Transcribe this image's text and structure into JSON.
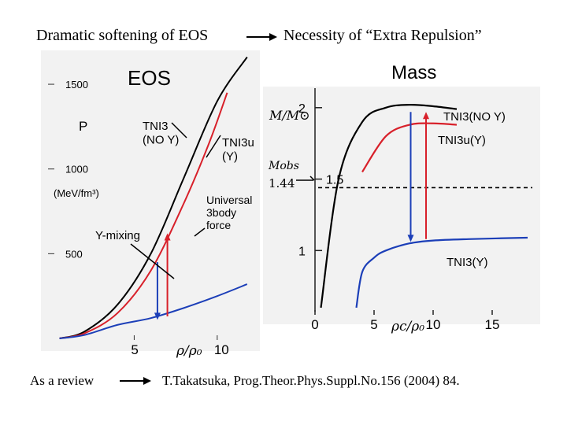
{
  "header": {
    "left": "Dramatic softening of EOS",
    "right": "Necessity of “Extra Repulsion”"
  },
  "footer": {
    "left": "As a review",
    "right": "T.Takatsuka, Prog.Theor.Phys.Suppl.No.156 (2004) 84."
  },
  "colors": {
    "black": "#000000",
    "red": "#d8202a",
    "blue": "#1c3fb8"
  },
  "chart_data": [
    {
      "type": "line",
      "title": "EOS",
      "ylabel": "P",
      "yunit": "(MeV/fm³)",
      "xlabel": "ρ/ρ₀",
      "yticks": [
        {
          "value": 1500,
          "label": "1500"
        },
        {
          "value": 1000,
          "label": "1000"
        },
        {
          "value": 500,
          "label": "500"
        }
      ],
      "xticks": [
        {
          "value": 5,
          "label": "5"
        },
        {
          "value": 10,
          "label": "10"
        }
      ],
      "xlim": [
        0,
        12
      ],
      "ylim": [
        0,
        1700
      ],
      "annotations": {
        "tni3_noy": "TNI3\n(NO Y)",
        "tni3u_y": "TNI3u\n(Y)",
        "y_mixing": "Y-mixing",
        "universal": "Universal\n3body\nforce"
      },
      "series": [
        {
          "color": "black",
          "x": [
            0.5,
            2,
            4,
            6,
            8,
            10,
            11.8
          ],
          "y": [
            0,
            40,
            200,
            500,
            950,
            1400,
            1660
          ]
        },
        {
          "color": "red",
          "x": [
            0.5,
            2,
            4,
            6,
            8,
            9.5,
            10.6
          ],
          "y": [
            0,
            30,
            150,
            400,
            800,
            1150,
            1450
          ]
        },
        {
          "color": "blue",
          "x": [
            0.5,
            2,
            4,
            6,
            8,
            10,
            11.8
          ],
          "y": [
            0,
            20,
            80,
            120,
            180,
            250,
            320
          ]
        }
      ],
      "arrows": [
        {
          "color": "blue",
          "x": 6.4,
          "from": 450,
          "to": 110
        },
        {
          "color": "red",
          "x": 7.0,
          "from": 130,
          "to": 620
        }
      ]
    },
    {
      "type": "line",
      "title": "Mass",
      "ylabel": "M/M⊙",
      "xlabel": "ρc/ρ₀",
      "mobs_label": "Mobs",
      "mobs_value": "1.44",
      "mobs": 1.44,
      "yticks": [
        {
          "value": 2,
          "label": "2"
        },
        {
          "value": 1.5,
          "label": "1.5"
        },
        {
          "value": 1,
          "label": "1"
        }
      ],
      "xticks": [
        {
          "value": 0,
          "label": "0"
        },
        {
          "value": 5,
          "label": "5"
        },
        {
          "value": 10,
          "label": "10"
        },
        {
          "value": 15,
          "label": "15"
        }
      ],
      "xlim": [
        0,
        18
      ],
      "ylim": [
        0.55,
        2.12
      ],
      "annotations": {
        "tni3_noy": "TNI3(NO Y)",
        "tni3u_y": "TNI3u(Y)",
        "tni3_y": "TNI3(Y)"
      },
      "series": [
        {
          "color": "black",
          "x": [
            0.5,
            2,
            4,
            6,
            8,
            10,
            12
          ],
          "y": [
            0.6,
            1.5,
            1.9,
            2.0,
            2.02,
            2.01,
            1.99
          ]
        },
        {
          "color": "red",
          "x": [
            4,
            6,
            8,
            10,
            12
          ],
          "y": [
            1.55,
            1.8,
            1.88,
            1.89,
            1.88
          ]
        },
        {
          "color": "blue",
          "x": [
            3.5,
            4,
            5,
            6,
            8,
            10,
            13,
            18
          ],
          "y": [
            0.6,
            0.85,
            0.95,
            1.0,
            1.05,
            1.07,
            1.08,
            1.09
          ]
        }
      ],
      "arrows": [
        {
          "color": "blue",
          "x": 8.1,
          "from": 1.97,
          "to": 1.06
        },
        {
          "color": "red",
          "x": 9.4,
          "from": 1.08,
          "to": 1.97
        }
      ]
    }
  ]
}
